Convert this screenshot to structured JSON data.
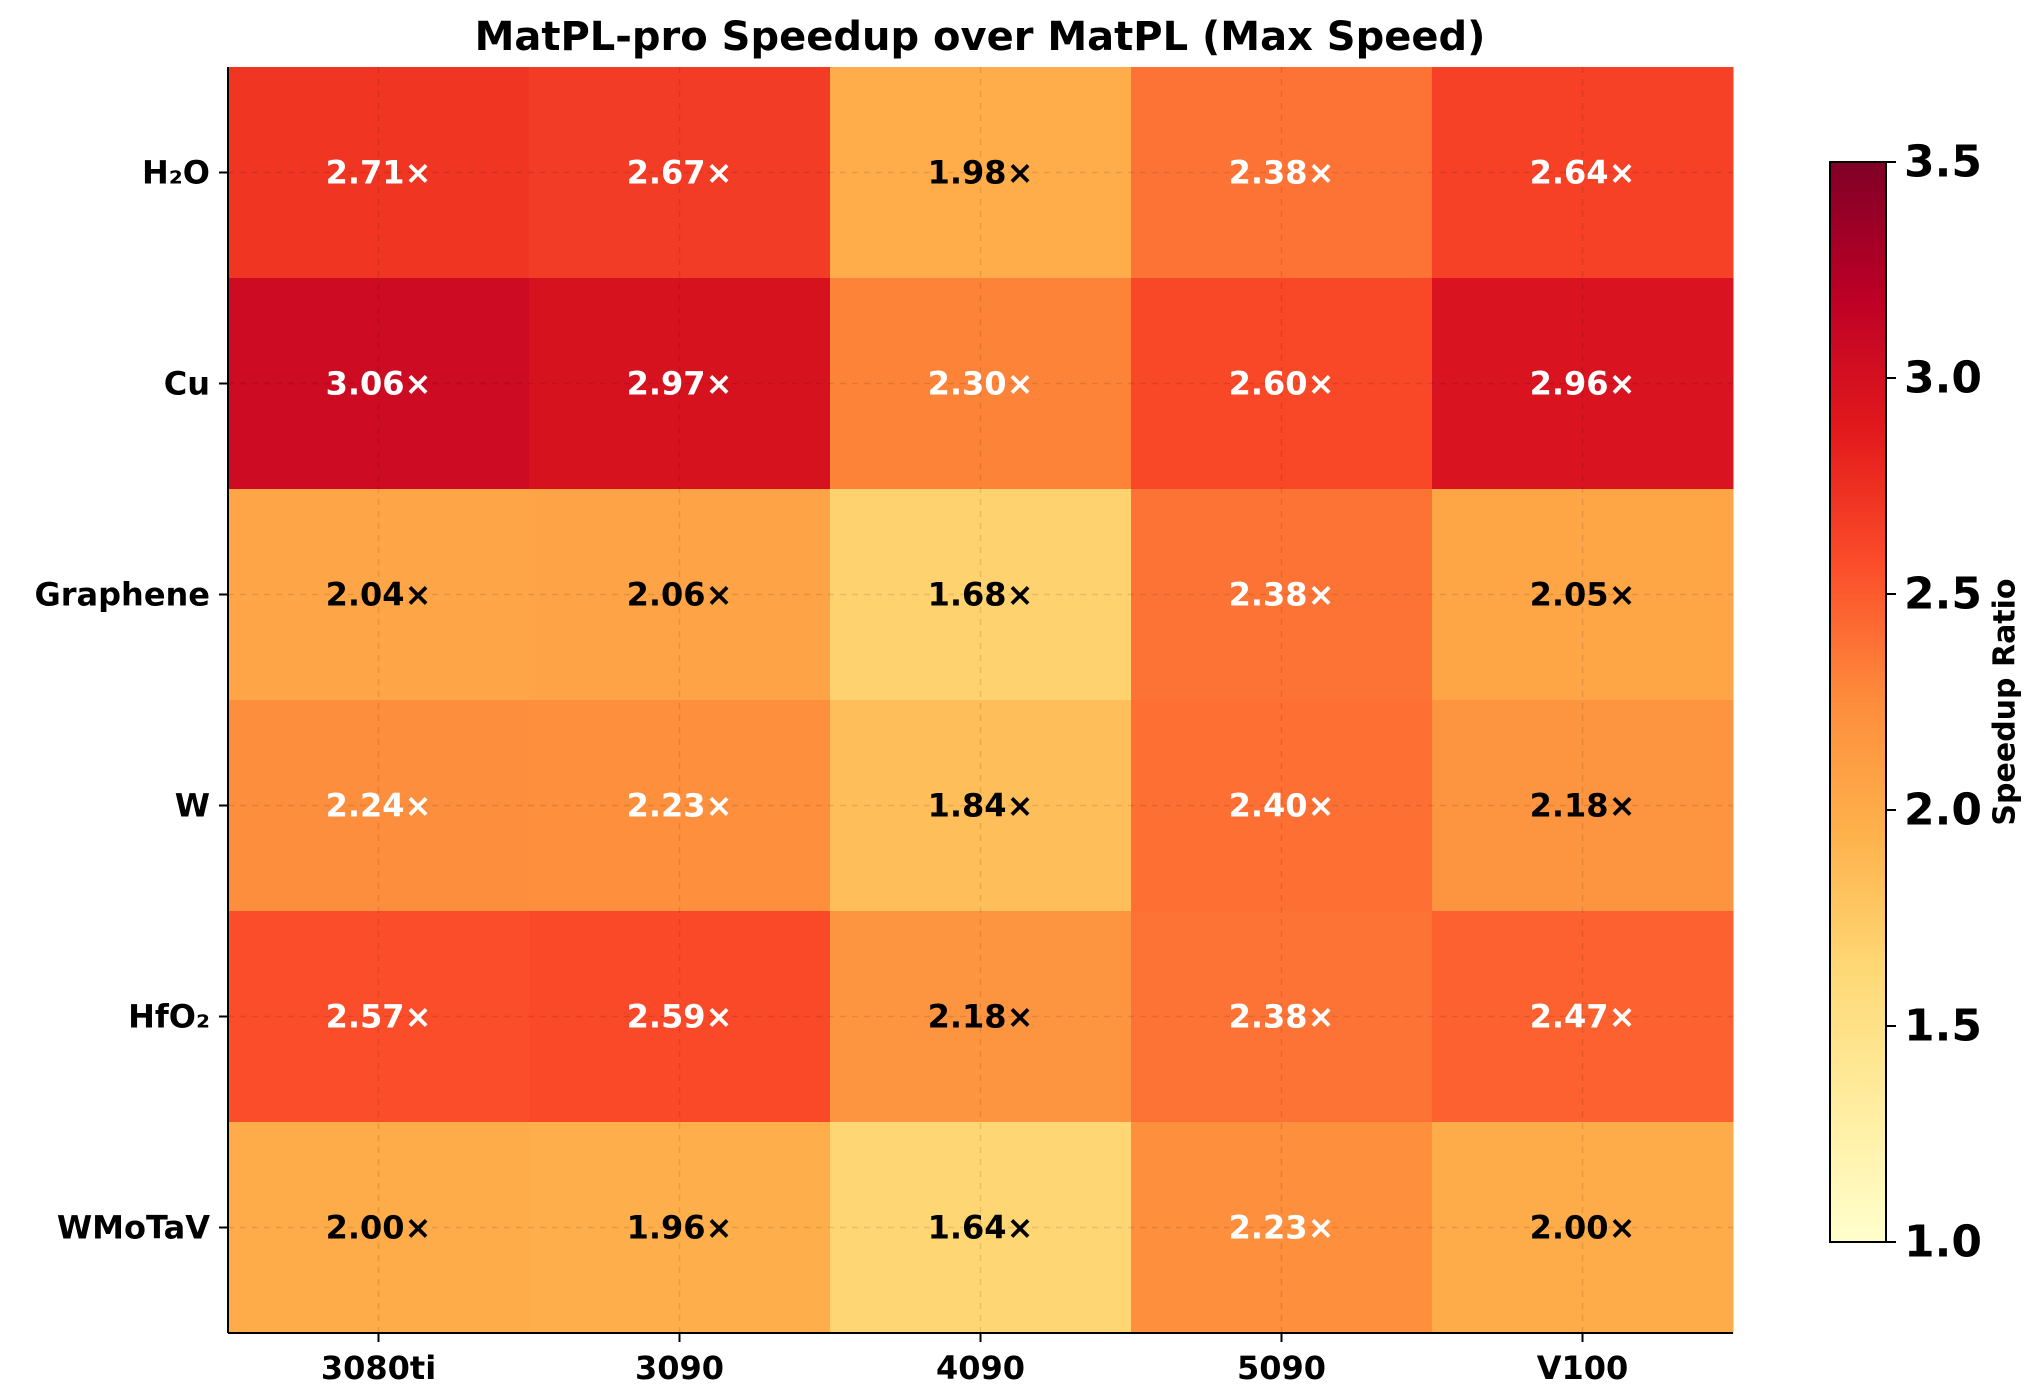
{
  "chart_data": {
    "type": "heatmap",
    "title": "MatPL-pro Speedup over MatPL (Max Speed)",
    "columns": [
      "3080ti",
      "3090",
      "4090",
      "5090",
      "V100"
    ],
    "rows": [
      "H₂O",
      "Cu",
      "Graphene",
      "W",
      "HfO₂",
      "WMoTaV"
    ],
    "values": [
      [
        2.71,
        2.67,
        1.98,
        2.38,
        2.64
      ],
      [
        3.06,
        2.97,
        2.3,
        2.6,
        2.96
      ],
      [
        2.04,
        2.06,
        1.68,
        2.38,
        2.05
      ],
      [
        2.24,
        2.23,
        1.84,
        2.4,
        2.18
      ],
      [
        2.57,
        2.59,
        2.18,
        2.38,
        2.47
      ],
      [
        2.0,
        1.96,
        1.64,
        2.23,
        2.0
      ]
    ],
    "cell_labels": [
      [
        "2.71×",
        "2.67×",
        "1.98×",
        "2.38×",
        "2.64×"
      ],
      [
        "3.06×",
        "2.97×",
        "2.30×",
        "2.60×",
        "2.96×"
      ],
      [
        "2.04×",
        "2.06×",
        "1.68×",
        "2.38×",
        "2.05×"
      ],
      [
        "2.24×",
        "2.23×",
        "1.84×",
        "2.40×",
        "2.18×"
      ],
      [
        "2.57×",
        "2.59×",
        "2.18×",
        "2.38×",
        "2.47×"
      ],
      [
        "2.00×",
        "1.96×",
        "1.64×",
        "2.23×",
        "2.00×"
      ]
    ],
    "colormap": "YlOrRd",
    "vmin": 1.0,
    "vmax": 3.5,
    "label_color_threshold": 2.2,
    "label_colors": {
      "light": "#ffffff",
      "dark": "#000000"
    },
    "colorbar": {
      "label": "Speedup Ratio",
      "ticks": [
        1.0,
        1.5,
        2.0,
        2.5,
        3.0,
        3.5
      ],
      "tick_labels": [
        "1.0",
        "1.5",
        "2.0",
        "2.5",
        "3.0",
        "3.5"
      ]
    },
    "grid": true,
    "colorbar_position": "right"
  }
}
